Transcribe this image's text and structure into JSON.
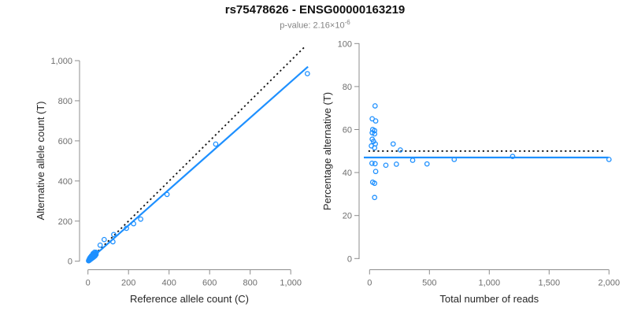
{
  "header": {
    "title": "rs75478626 - ENSG00000163219",
    "p_value_prefix": "p-value: 2.16×10",
    "p_value_exponent": "-6"
  },
  "colors": {
    "accent_blue": "#1E90FF",
    "identity_black": "#111111",
    "axis_line": "#8c8c8c",
    "tick_label": "#6e6e6e",
    "axis_title": "#262626"
  },
  "chart_data": [
    {
      "type": "scatter",
      "name": "allele-counts-plot",
      "xlabel": "Reference allele count (C)",
      "ylabel": "Alternative allele count (T)",
      "xlim": [
        0,
        1090
      ],
      "ylim": [
        0,
        1080
      ],
      "x_ticks": [
        0,
        200,
        400,
        600,
        800,
        1000
      ],
      "x_tick_labels": [
        "0",
        "200",
        "400",
        "600",
        "800",
        "1,000"
      ],
      "y_ticks": [
        0,
        200,
        400,
        600,
        800,
        1000
      ],
      "y_tick_labels": [
        "0",
        "200",
        "400",
        "600",
        "800",
        "1,000"
      ],
      "grid": false,
      "legend": "none",
      "points": [
        [
          3,
          2
        ],
        [
          4,
          5
        ],
        [
          5,
          3
        ],
        [
          6,
          7
        ],
        [
          7,
          5
        ],
        [
          8,
          9
        ],
        [
          9,
          6
        ],
        [
          10,
          11
        ],
        [
          11,
          8
        ],
        [
          12,
          13
        ],
        [
          13,
          10
        ],
        [
          14,
          15
        ],
        [
          15,
          11
        ],
        [
          16,
          17
        ],
        [
          17,
          13
        ],
        [
          18,
          19
        ],
        [
          19,
          14
        ],
        [
          20,
          21
        ],
        [
          21,
          16
        ],
        [
          22,
          23
        ],
        [
          23,
          17
        ],
        [
          24,
          25
        ],
        [
          25,
          19
        ],
        [
          26,
          27
        ],
        [
          27,
          20
        ],
        [
          28,
          29
        ],
        [
          29,
          22
        ],
        [
          30,
          31
        ],
        [
          31,
          24
        ],
        [
          32,
          33
        ],
        [
          34,
          26
        ],
        [
          35,
          36
        ],
        [
          36,
          28
        ],
        [
          38,
          40
        ],
        [
          40,
          34
        ],
        [
          41,
          44
        ],
        [
          28,
          35
        ],
        [
          22,
          30
        ],
        [
          16,
          24
        ],
        [
          12,
          20
        ],
        [
          8,
          14
        ],
        [
          33,
          45
        ],
        [
          25,
          38
        ],
        [
          18,
          28
        ],
        [
          60,
          80
        ],
        [
          80,
          108
        ],
        [
          123,
          97
        ],
        [
          127,
          133
        ],
        [
          190,
          164
        ],
        [
          225,
          187
        ],
        [
          260,
          210
        ],
        [
          390,
          333
        ],
        [
          630,
          584
        ],
        [
          1082,
          935
        ]
      ],
      "lines": [
        {
          "name": "identity-line",
          "style": "dotted",
          "color": "#111111",
          "x1": 2,
          "y1": 2,
          "x2": 1075,
          "y2": 1075
        },
        {
          "name": "fit-line",
          "style": "solid",
          "color": "#1E90FF",
          "x1": 0,
          "y1": 0,
          "x2": 1085,
          "y2": 970
        }
      ]
    },
    {
      "type": "scatter",
      "name": "percentage-vs-reads-plot",
      "xlabel": "Total number of reads",
      "ylabel": "Percentage alternative (T)",
      "xlim": [
        0,
        2000
      ],
      "ylim": [
        0,
        100
      ],
      "x_ticks": [
        0,
        500,
        1000,
        1500,
        2000
      ],
      "x_tick_labels": [
        "0",
        "500",
        "1,000",
        "1,500",
        "2,000"
      ],
      "y_ticks": [
        0,
        20,
        40,
        60,
        80,
        100
      ],
      "y_tick_labels": [
        "0",
        "20",
        "40",
        "60",
        "80",
        "100"
      ],
      "grid": false,
      "legend": "none",
      "points": [
        [
          46,
          71
        ],
        [
          22,
          65
        ],
        [
          51,
          64
        ],
        [
          26,
          60
        ],
        [
          42,
          59.5
        ],
        [
          22,
          58.5
        ],
        [
          42,
          58
        ],
        [
          22,
          55.5
        ],
        [
          33,
          54.5
        ],
        [
          48,
          53.3
        ],
        [
          15,
          52.4
        ],
        [
          42,
          51.5
        ],
        [
          197,
          53.3
        ],
        [
          257,
          50.5
        ],
        [
          20,
          44.3
        ],
        [
          46,
          44.1
        ],
        [
          136,
          43.4
        ],
        [
          224,
          43.9
        ],
        [
          360,
          45.7
        ],
        [
          480,
          44
        ],
        [
          51,
          40.5
        ],
        [
          26,
          35.5
        ],
        [
          42,
          35
        ],
        [
          42,
          28.4
        ],
        [
          707,
          46.1
        ],
        [
          1195,
          47.5
        ],
        [
          2000,
          46.1
        ]
      ],
      "lines": [
        {
          "name": "expected-50pct-line",
          "style": "dotted",
          "color": "#111111",
          "x1": -10,
          "y1": 50,
          "x2": 1968,
          "y2": 50
        },
        {
          "name": "mean-line",
          "style": "solid",
          "color": "#1E90FF",
          "x1": -48,
          "y1": 47,
          "x2": 1995,
          "y2": 47
        }
      ]
    }
  ]
}
